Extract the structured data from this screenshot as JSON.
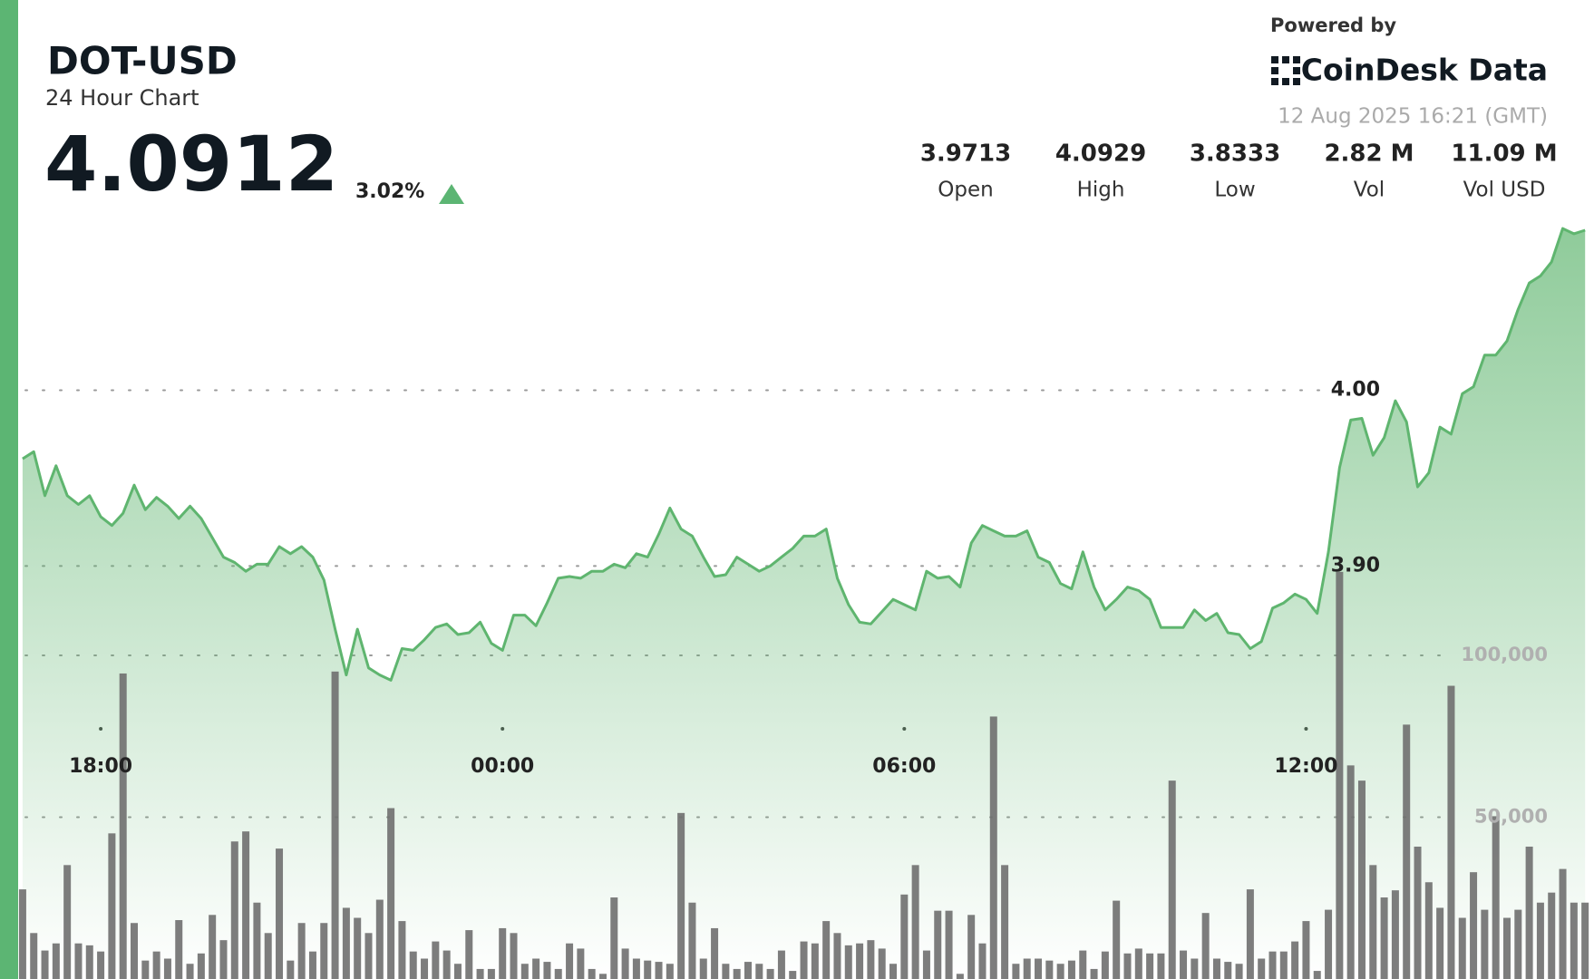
{
  "header": {
    "symbol": "DOT-USD",
    "subtitle": "24 Hour Chart",
    "price": "4.0912",
    "change": "3.02%",
    "powered_by": "Powered by",
    "brand": "CoinDesk Data",
    "timestamp": "12 Aug 2025 16:21 (GMT)",
    "stats": [
      {
        "value": "3.9713",
        "label": "Open"
      },
      {
        "value": "4.0929",
        "label": "High"
      },
      {
        "value": "3.8333",
        "label": "Low"
      },
      {
        "value": "2.82 M",
        "label": "Vol"
      },
      {
        "value": "11.09 M",
        "label": "Vol USD"
      }
    ]
  },
  "chart_data": {
    "type": "line",
    "x": [
      1010,
      1020,
      1030,
      1040,
      1050,
      1060,
      1070,
      1080,
      1090,
      1100,
      1110,
      1120,
      1130,
      1140,
      1150,
      1160,
      1170,
      1180,
      1190,
      1200,
      1210,
      1220,
      1230,
      1240,
      1250,
      1260,
      1270,
      1280,
      1290,
      1300,
      1310,
      1320,
      1330,
      1340,
      1350,
      1360,
      1370,
      1380,
      1390,
      1400,
      1410,
      1420,
      1430,
      1440,
      1450,
      1460,
      1470,
      1480,
      1490,
      1500,
      1510,
      1520,
      1530,
      1540,
      1550,
      1560,
      1570,
      1580,
      1590,
      1600,
      1610,
      1620,
      1630,
      1640,
      1650,
      1660,
      1670,
      1680,
      1690,
      1700,
      1710,
      1720,
      1730,
      1740,
      1750,
      1760,
      1770,
      1780,
      1790,
      1800,
      1810,
      1820,
      1830,
      1840,
      1850,
      1860,
      1870,
      1880,
      1890,
      1900,
      1910,
      1920,
      1930,
      1940,
      1950,
      1960,
      1970,
      1980,
      1990,
      2000,
      2010,
      2020,
      2030,
      2040,
      2050,
      2060,
      2070,
      2080,
      2090,
      2100,
      2110,
      2120,
      2130,
      2140,
      2150,
      2160,
      2170,
      2180,
      2190,
      2200,
      2210,
      2220,
      2230,
      2240,
      2250,
      2260,
      2270,
      2280,
      2290,
      2300,
      2310,
      2320,
      2330,
      2340,
      2350,
      2360,
      2370,
      2380,
      2390,
      2400,
      2410
    ],
    "series": [
      {
        "type": "line",
        "color": "#5fb56f",
        "values": [
          3.961,
          3.965,
          3.94,
          3.957,
          3.94,
          3.935,
          3.94,
          3.928,
          3.923,
          3.93,
          3.946,
          3.932,
          3.939,
          3.934,
          3.927,
          3.934,
          3.927,
          3.916,
          3.905,
          3.902,
          3.897,
          3.901,
          3.901,
          3.911,
          3.907,
          3.911,
          3.905,
          3.892,
          3.864,
          3.838,
          3.864,
          3.842,
          3.838,
          3.835,
          3.853,
          3.852,
          3.858,
          3.865,
          3.867,
          3.861,
          3.862,
          3.868,
          3.856,
          3.852,
          3.872,
          3.872,
          3.866,
          3.879,
          3.893,
          3.894,
          3.893,
          3.897,
          3.897,
          3.901,
          3.899,
          3.907,
          3.905,
          3.918,
          3.933,
          3.921,
          3.917,
          3.905,
          3.894,
          3.895,
          3.905,
          3.901,
          3.897,
          3.9,
          3.905,
          3.91,
          3.917,
          3.917,
          3.921,
          3.893,
          3.878,
          3.868,
          3.867,
          3.874,
          3.881,
          3.878,
          3.875,
          3.897,
          3.893,
          3.894,
          3.888,
          3.913,
          3.923,
          3.92,
          3.917,
          3.917,
          3.92,
          3.905,
          3.902,
          3.89,
          3.887,
          3.908,
          3.888,
          3.875,
          3.881,
          3.888,
          3.886,
          3.881,
          3.865,
          3.865,
          3.865,
          3.875,
          3.869,
          3.873,
          3.862,
          3.861,
          3.853,
          3.857,
          3.876,
          3.879,
          3.884,
          3.881,
          3.873,
          3.908,
          3.956,
          3.983,
          3.984,
          3.963,
          3.973,
          3.994,
          3.982,
          3.945,
          3.953,
          3.979,
          3.975,
          3.998,
          4.002,
          4.02,
          4.02,
          4.028,
          4.046,
          4.061,
          4.065,
          4.073,
          4.092,
          4.089,
          4.091
        ]
      },
      {
        "type": "bar",
        "axis": "y2",
        "color": "#6f6f6f",
        "values": [
          27700,
          14200,
          8800,
          11000,
          35200,
          11000,
          10400,
          8500,
          45000,
          94400,
          17300,
          5700,
          8500,
          6300,
          18200,
          4700,
          7900,
          19800,
          12000,
          42500,
          45600,
          23600,
          14200,
          40300,
          5700,
          17300,
          8500,
          17300,
          95000,
          22000,
          18900,
          14200,
          24500,
          52800,
          17900,
          8500,
          6300,
          11600,
          8800,
          4700,
          15100,
          3100,
          3100,
          15700,
          14200,
          4700,
          6300,
          5300,
          3100,
          11000,
          9400,
          3100,
          1600,
          25200,
          9400,
          6300,
          5700,
          5300,
          4700,
          51300,
          23600,
          6300,
          15700,
          4700,
          3100,
          5300,
          4700,
          3100,
          8800,
          2500,
          11600,
          11000,
          17900,
          14200,
          10400,
          11000,
          12000,
          9400,
          4700,
          26100,
          35200,
          8800,
          21100,
          21100,
          1600,
          19800,
          11000,
          81100,
          35200,
          4700,
          6300,
          6300,
          5700,
          4700,
          5700,
          8800,
          3100,
          8500,
          24200,
          7900,
          9400,
          7900,
          7900,
          61300,
          8800,
          6300,
          20400,
          6300,
          5300,
          4700,
          27700,
          6300,
          8500,
          8500,
          11600,
          17900,
          2500,
          21400,
          125800,
          66000,
          61300,
          35200,
          25200,
          27400,
          78600,
          40900,
          29900,
          22000,
          90600,
          18900,
          33000,
          21400,
          50300,
          18900,
          21400,
          40900,
          23600,
          26700,
          34000,
          23600,
          23600
        ]
      }
    ],
    "xlim": [
      1006,
      2418
    ],
    "xticks": [
      {
        "value": 1080,
        "label": "18:00"
      },
      {
        "value": 1440,
        "label": "00:00"
      },
      {
        "value": 1800,
        "label": "06:00"
      },
      {
        "value": 2160,
        "label": "12:00"
      }
    ],
    "ylim": [
      3.665,
      4.222
    ],
    "yticks": [
      {
        "value": 4,
        "label": "4.00"
      },
      {
        "value": 3.9,
        "label": "3.90"
      }
    ],
    "y2lim": [
      0,
      302500
    ],
    "y2ticks": [
      {
        "value": 100000,
        "label": "100,000"
      },
      {
        "value": 50000,
        "label": "50,000"
      }
    ],
    "grid": true
  }
}
